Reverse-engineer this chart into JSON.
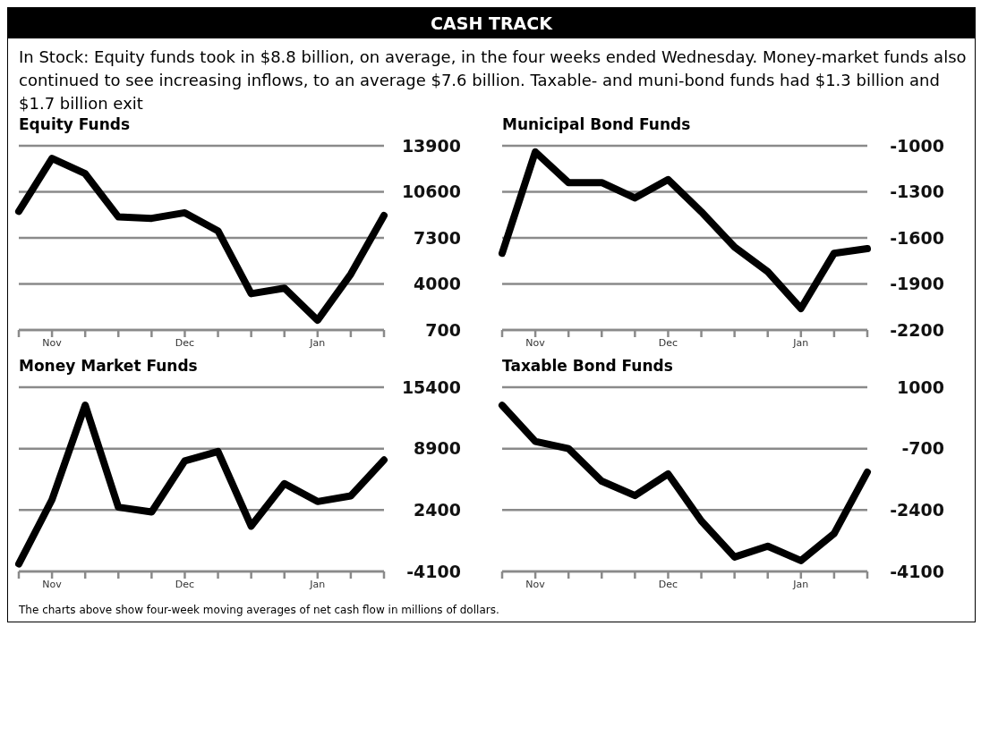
{
  "chart_data": [
    {
      "type": "other",
      "title": "CASH TRACK",
      "subtitle": "In Stock: Equity funds took in $8.8 billion, on average, in the four weeks ended Wednesday. Money-market funds also continued to see increasing inflows, to an average $7.6 billion. Taxable- and muni-bond funds had $1.3 billion and $1.7 billion exit",
      "annotations": [
        "The charts above show four-week moving averages of net cash flow in millions of dollars."
      ]
    },
    {
      "type": "line",
      "title": "Equity Funds",
      "categories": [
        null,
        "Nov",
        null,
        null,
        null,
        "Dec",
        null,
        null,
        null,
        "Jan",
        null,
        null
      ],
      "series": [
        {
          "color": "#000000",
          "values": [
            9200,
            13000,
            11900,
            8800,
            8700,
            9100,
            7800,
            3300,
            3700,
            1400,
            4700,
            8900
          ]
        }
      ],
      "ylim": [
        700,
        13900
      ],
      "yticks": [
        700,
        4000,
        7300,
        10600,
        13900
      ],
      "grid": "y",
      "line_style": "solid"
    },
    {
      "type": "line",
      "title": "Municipal Bond Funds",
      "categories": [
        null,
        "Nov",
        null,
        null,
        null,
        "Dec",
        null,
        null,
        null,
        "Jan",
        null,
        null
      ],
      "series": [
        {
          "color": "#000000",
          "values": [
            -1700,
            -1040,
            -1240,
            -1240,
            -1340,
            -1220,
            -1430,
            -1660,
            -1820,
            -2060,
            -1700,
            -1670
          ]
        }
      ],
      "ylim": [
        -2200,
        -1000
      ],
      "yticks": [
        -2200,
        -1900,
        -1600,
        -1300,
        -1000
      ],
      "grid": "y",
      "line_style": "solid"
    },
    {
      "type": "line",
      "title": "Money Market Funds",
      "categories": [
        null,
        "Nov",
        null,
        null,
        null,
        "Dec",
        null,
        null,
        null,
        "Jan",
        null,
        null
      ],
      "series": [
        {
          "color": "#000000",
          "values": [
            -3300,
            3500,
            13500,
            2700,
            2200,
            7600,
            8600,
            700,
            5200,
            3300,
            3900,
            7700
          ]
        }
      ],
      "ylim": [
        -4100,
        15400
      ],
      "yticks": [
        -4100,
        2400,
        8900,
        15400
      ],
      "grid": "y",
      "line_style": "solid"
    },
    {
      "type": "line",
      "title": "Taxable Bond Funds",
      "categories": [
        null,
        "Nov",
        null,
        null,
        null,
        "Dec",
        null,
        null,
        null,
        "Jan",
        null,
        null
      ],
      "series": [
        {
          "color": "#000000",
          "values": [
            500,
            -500,
            -700,
            -1600,
            -2000,
            -1400,
            -2700,
            -3700,
            -3400,
            -3800,
            -3050,
            -1350
          ]
        }
      ],
      "ylim": [
        -4100,
        1000
      ],
      "yticks": [
        -4100,
        -2400,
        -700,
        1000
      ],
      "grid": "y",
      "line_style": "solid"
    }
  ]
}
